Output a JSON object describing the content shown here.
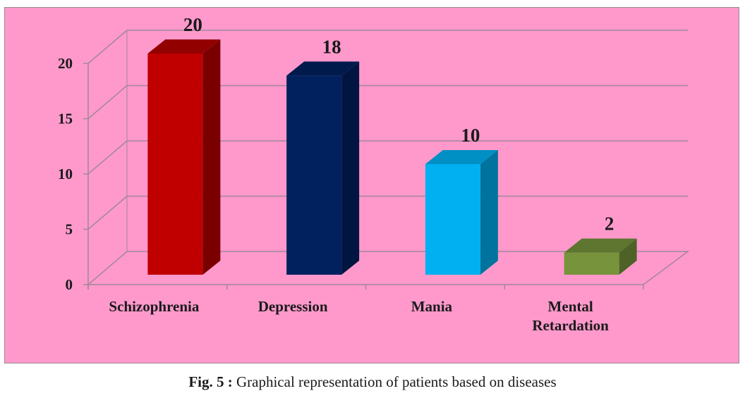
{
  "chart_data": {
    "type": "bar",
    "style": "3d-column",
    "title": "",
    "xlabel": "",
    "ylabel": "",
    "categories": [
      "Schizophrenia",
      "Depression",
      "Mania",
      "Mental Retardation"
    ],
    "category_label_lines": [
      [
        "Schizophrenia"
      ],
      [
        "Depression"
      ],
      [
        "Mania"
      ],
      [
        "Mental",
        "Retardation"
      ]
    ],
    "values": [
      20,
      18,
      10,
      2
    ],
    "data_labels": [
      "20",
      "18",
      "10",
      "2"
    ],
    "bar_colors": [
      {
        "front": "#c00000",
        "side": "#7a0000",
        "top": "#930000"
      },
      {
        "front": "#00215e",
        "side": "#001540",
        "top": "#001a4c"
      },
      {
        "front": "#00b0f0",
        "side": "#00749e",
        "top": "#0090c4"
      },
      {
        "front": "#77933c",
        "side": "#4e6228",
        "top": "#5e7630"
      }
    ],
    "ylim": [
      0,
      20
    ],
    "yticks": [
      0,
      5,
      10,
      15,
      20
    ],
    "grid": true,
    "legend": "none",
    "background": "#ff99cc"
  },
  "caption": {
    "label": "Fig. 5 :",
    "text": " Graphical representation of patients based on diseases"
  }
}
